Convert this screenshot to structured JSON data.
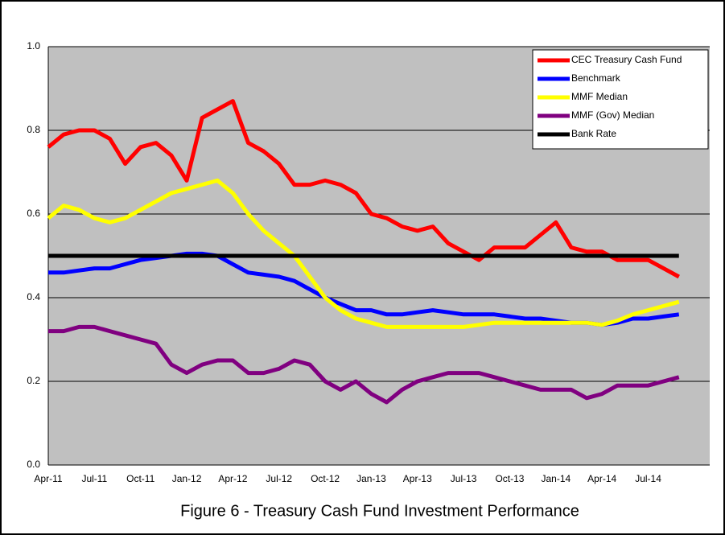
{
  "chart_data": {
    "type": "line",
    "title": "Figure 6 - Treasury Cash Fund Investment Performance",
    "categories": [
      "Apr-11",
      null,
      null,
      "Jul-11",
      null,
      null,
      "Oct-11",
      null,
      null,
      "Jan-12",
      null,
      null,
      "Apr-12",
      null,
      null,
      "Jul-12",
      null,
      null,
      "Oct-12",
      null,
      null,
      "Jan-13",
      null,
      null,
      "Apr-13",
      null,
      null,
      "Jul-13",
      null,
      null,
      "Oct-13",
      null,
      null,
      "Jan-14",
      null,
      null,
      "Apr-14",
      null,
      null,
      "Jul-14",
      null,
      null
    ],
    "series": [
      {
        "name": "CEC Treasury Cash Fund",
        "color": "#ff0000",
        "values": [
          0.76,
          0.79,
          0.8,
          0.8,
          0.78,
          0.72,
          0.76,
          0.77,
          0.74,
          0.68,
          0.83,
          0.85,
          0.87,
          0.77,
          0.75,
          0.72,
          0.67,
          0.67,
          0.68,
          0.67,
          0.65,
          0.6,
          0.59,
          0.57,
          0.56,
          0.57,
          0.53,
          0.51,
          0.49,
          0.52,
          0.52,
          0.52,
          0.55,
          0.58,
          0.52,
          0.51,
          0.51,
          0.49,
          0.49,
          0.49,
          0.47,
          0.45
        ]
      },
      {
        "name": "Benchmark",
        "color": "#0000ff",
        "values": [
          0.46,
          0.46,
          0.465,
          0.47,
          0.47,
          0.48,
          0.49,
          0.495,
          0.5,
          0.505,
          0.505,
          0.5,
          0.48,
          0.46,
          0.455,
          0.45,
          0.44,
          0.42,
          0.4,
          0.385,
          0.37,
          0.37,
          0.36,
          0.36,
          0.365,
          0.37,
          0.365,
          0.36,
          0.36,
          0.36,
          0.355,
          0.35,
          0.35,
          0.345,
          0.34,
          0.34,
          0.335,
          0.34,
          0.35,
          0.35,
          0.355,
          0.36
        ]
      },
      {
        "name": "MMF Median",
        "color": "#ffff00",
        "values": [
          0.59,
          0.62,
          0.61,
          0.59,
          0.58,
          0.59,
          0.61,
          0.63,
          0.65,
          0.66,
          0.67,
          0.68,
          0.65,
          0.6,
          0.56,
          0.53,
          0.5,
          0.45,
          0.4,
          0.37,
          0.35,
          0.34,
          0.33,
          0.33,
          0.33,
          0.33,
          0.33,
          0.33,
          0.335,
          0.34,
          0.34,
          0.34,
          0.34,
          0.34,
          0.34,
          0.34,
          0.335,
          0.345,
          0.36,
          0.37,
          0.38,
          0.39
        ]
      },
      {
        "name": "MMF (Gov) Median",
        "color": "#800080",
        "values": [
          0.32,
          0.32,
          0.33,
          0.33,
          0.32,
          0.31,
          0.3,
          0.29,
          0.24,
          0.22,
          0.24,
          0.25,
          0.25,
          0.22,
          0.22,
          0.23,
          0.25,
          0.24,
          0.2,
          0.18,
          0.2,
          0.17,
          0.15,
          0.18,
          0.2,
          0.21,
          0.22,
          0.22,
          0.22,
          0.21,
          0.2,
          0.19,
          0.18,
          0.18,
          0.18,
          0.16,
          0.17,
          0.19,
          0.19,
          0.19,
          0.2,
          0.21
        ]
      },
      {
        "name": "Bank Rate",
        "color": "#000000",
        "values": [
          0.5,
          0.5,
          0.5,
          0.5,
          0.5,
          0.5,
          0.5,
          0.5,
          0.5,
          0.5,
          0.5,
          0.5,
          0.5,
          0.5,
          0.5,
          0.5,
          0.5,
          0.5,
          0.5,
          0.5,
          0.5,
          0.5,
          0.5,
          0.5,
          0.5,
          0.5,
          0.5,
          0.5,
          0.5,
          0.5,
          0.5,
          0.5,
          0.5,
          0.5,
          0.5,
          0.5,
          0.5,
          0.5,
          0.5,
          0.5,
          0.5,
          0.5
        ]
      }
    ],
    "ylim": [
      0,
      1
    ],
    "yticks": [
      {
        "value": 0,
        "label": "0.0"
      },
      0.2,
      0.4,
      0.6,
      0.8,
      {
        "value": 1,
        "label": "1.0"
      }
    ],
    "grid": true,
    "legend": "top-right",
    "plot_background": "#c0c0c0"
  }
}
